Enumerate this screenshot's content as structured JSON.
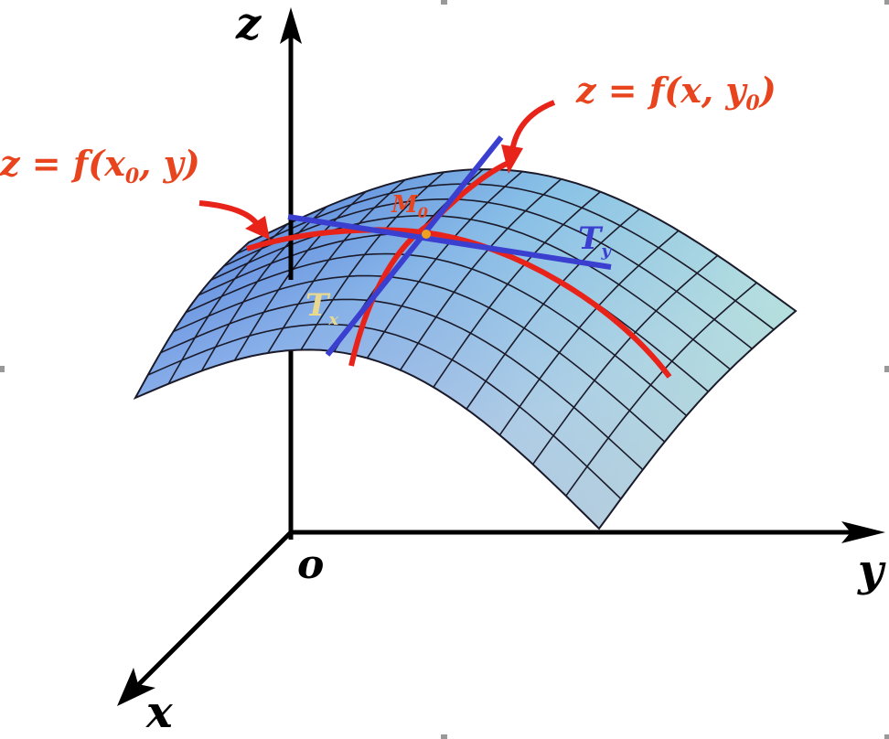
{
  "axes": {
    "z": "z",
    "y": "y",
    "x": "x",
    "origin": "o"
  },
  "curve_y0": {
    "pre": "z = f(x, y",
    "sub": "0",
    "post": ")"
  },
  "curve_x0": {
    "pre": "z = f(x",
    "sub": "0",
    "post": ", y)"
  },
  "point": {
    "main": "M",
    "sub": "0"
  },
  "tangent_y": {
    "main": "T",
    "sub": "y"
  },
  "tangent_x": {
    "main": "T",
    "sub": "x"
  },
  "colors": {
    "curve": "#e8231a",
    "tangent": "#3a3fd0",
    "label_red": "#e8451f",
    "point": "#f0a020",
    "tx_label": "#e8d890",
    "axis": "#000000"
  }
}
